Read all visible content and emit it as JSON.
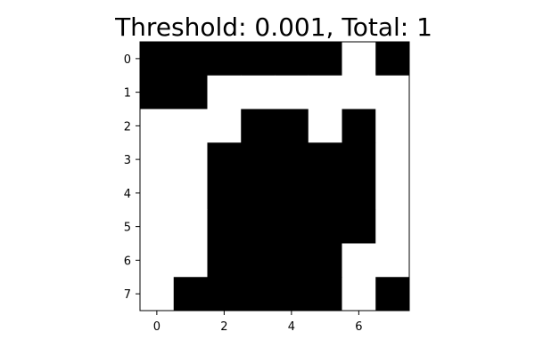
{
  "chart_data": {
    "type": "heatmap",
    "title": "Threshold: 0.001, Total: 1",
    "xlabel": "",
    "ylabel": "",
    "rows": 8,
    "cols": 8,
    "x_ticks": [
      0,
      2,
      4,
      6
    ],
    "y_ticks": [
      0,
      1,
      2,
      3,
      4,
      5,
      6,
      7
    ],
    "xlim": [
      -0.5,
      7.5
    ],
    "ylim": [
      7.5,
      -0.5
    ],
    "grid": false,
    "colormap": {
      "0": "#000000",
      "1": "#ffffff"
    },
    "values": [
      [
        0,
        0,
        0,
        0,
        0,
        0,
        1,
        0
      ],
      [
        0,
        0,
        1,
        1,
        1,
        1,
        1,
        1
      ],
      [
        1,
        1,
        1,
        0,
        0,
        1,
        0,
        1
      ],
      [
        1,
        1,
        0,
        0,
        0,
        0,
        0,
        1
      ],
      [
        1,
        1,
        0,
        0,
        0,
        0,
        0,
        1
      ],
      [
        1,
        1,
        0,
        0,
        0,
        0,
        0,
        1
      ],
      [
        1,
        1,
        0,
        0,
        0,
        0,
        1,
        1
      ],
      [
        1,
        0,
        0,
        0,
        0,
        0,
        1,
        0
      ]
    ]
  }
}
